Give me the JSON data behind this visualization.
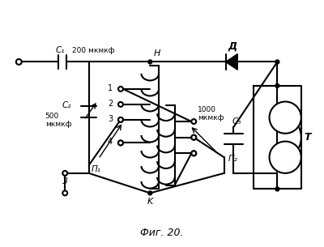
{
  "title": "Фиг. 20.",
  "bg_color": "#ffffff",
  "line_color": "#000000",
  "fig_width": 4.0,
  "fig_height": 3.05,
  "dpi": 100,
  "labels": {
    "C1": "C₁",
    "C1_val": "200 мкмкф",
    "C2": "C₂",
    "C2_val": "500\nмкмкф",
    "C3": "C₃",
    "C3_val": "1000\nмкмкф",
    "D": "Д",
    "T": "T",
    "N": "H",
    "K": "K",
    "P1": "П₁",
    "P2": "П₂",
    "Z": "3",
    "tap1": "1",
    "tap2": "2",
    "tap3": "3",
    "tap4": "4"
  }
}
